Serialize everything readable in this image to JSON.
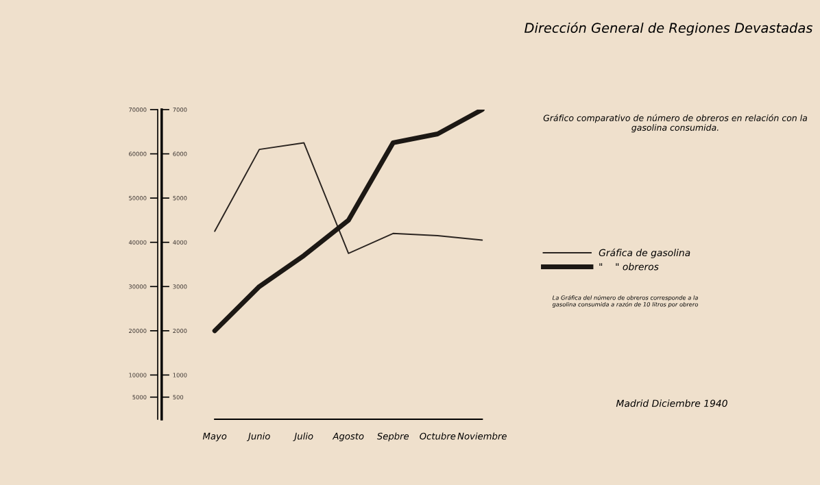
{
  "chart_data": {
    "type": "line",
    "title": "Dirección General de Regiones Devastadas",
    "subtitle": "Gráfico comparativo de número de obreros en relación con la gasolina consumida.",
    "categories": [
      "Mayo",
      "Junio",
      "Julio",
      "Agosto",
      "Sepbre",
      "Octubre",
      "Noviembre"
    ],
    "series": [
      {
        "name": "Gráfica de gasolina",
        "color": "#2a2420",
        "values": [
          42500,
          61000,
          62500,
          37500,
          42000,
          41500,
          40500
        ]
      },
      {
        "name": "\"    \" obreros",
        "color": "#1c1814",
        "axis": "y2",
        "values": [
          2000,
          3000,
          3700,
          4500,
          6250,
          6450,
          7000
        ]
      }
    ],
    "ylim": [
      0,
      70000
    ],
    "yticks": [
      5000,
      10000,
      20000,
      30000,
      40000,
      50000,
      60000,
      70000
    ],
    "y2lim": [
      0,
      7000
    ],
    "y2ticks": [
      500,
      1000,
      2000,
      3000,
      4000,
      5000,
      6000,
      7000
    ],
    "legend": "right",
    "grid": false,
    "marker": "none",
    "line_style": "solid",
    "annotations": [
      "La Gráfica del número de obreros corresponde a la gasolina consumida a razón de 10 litros por obrero",
      "Madrid Diciembre 1940"
    ]
  }
}
